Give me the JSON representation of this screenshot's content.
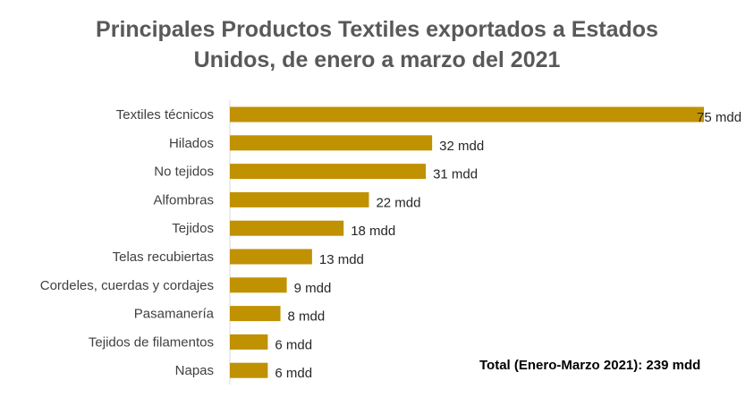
{
  "chart_data": {
    "type": "bar",
    "orientation": "horizontal",
    "title_lines": [
      "Principales Productos Textiles exportados a Estados",
      "Unidos, de enero a marzo del 2021"
    ],
    "categories": [
      "Textiles técnicos",
      "Hilados",
      "No tejidos",
      "Alfombras",
      "Tejidos",
      "Telas recubiertas",
      "Cordeles, cuerdas y cordajes",
      "Pasamanería",
      "Tejidos de filamentos",
      "Napas"
    ],
    "values": [
      75,
      32,
      31,
      22,
      18,
      13,
      9,
      8,
      6,
      6
    ],
    "value_labels": [
      "75 mdd",
      "32 mdd",
      "31 mdd",
      "22 mdd",
      "18 mdd",
      "13 mdd",
      "9 mdd",
      "8 mdd",
      "6 mdd",
      "6 mdd"
    ],
    "xlim": [
      0,
      75
    ],
    "grid": false,
    "legend": "none",
    "bar_color": "#C09100",
    "axis_color": "#D9D9D9",
    "annotation": "Total (Enero-Marzo 2021): 239 mdd"
  }
}
